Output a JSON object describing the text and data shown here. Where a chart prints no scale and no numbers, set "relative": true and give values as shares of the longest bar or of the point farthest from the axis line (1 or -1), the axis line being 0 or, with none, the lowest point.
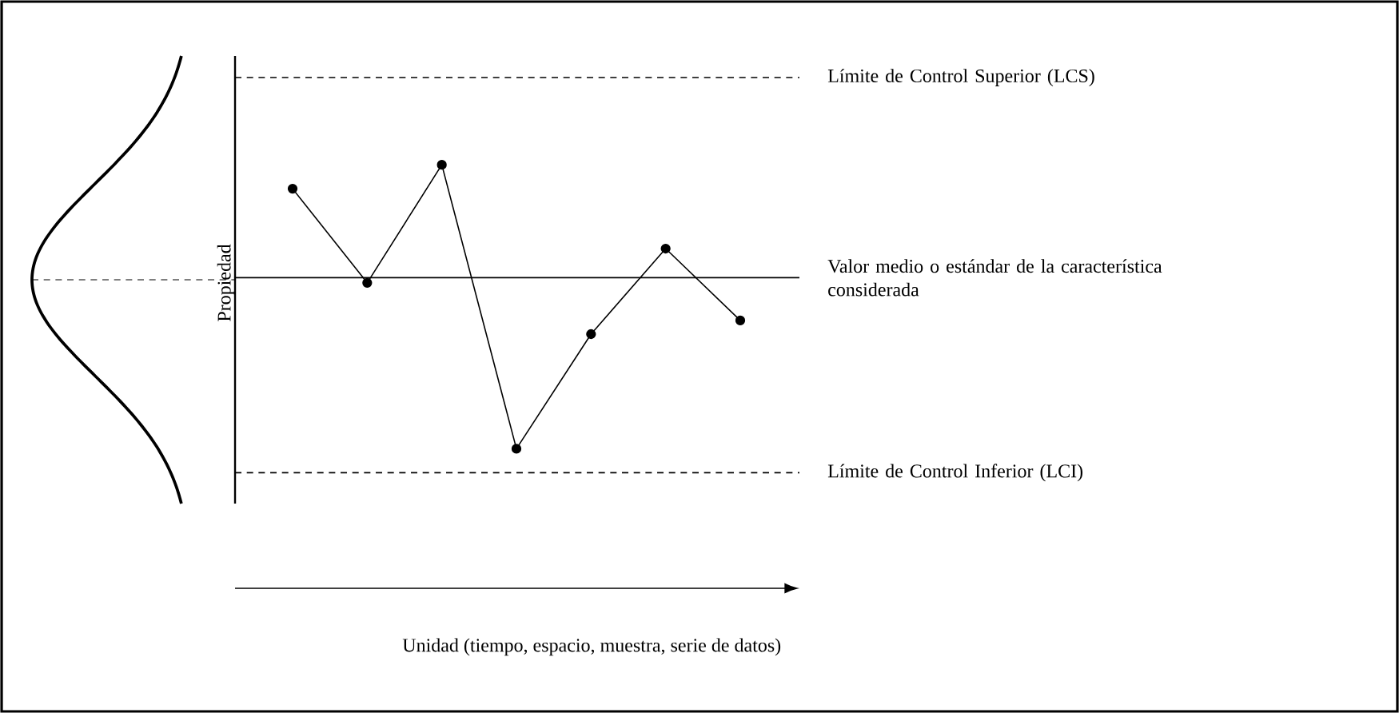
{
  "chart_data": {
    "type": "line",
    "relative": true,
    "ylabel": "Propiedad",
    "annotations": [
      "Unidad (tiempo, espacio, muestra, serie de datos)"
    ],
    "categories": [
      null,
      null,
      null,
      null,
      null,
      null,
      null
    ],
    "marker": "circle",
    "line_style": "solid",
    "series": [
      {
        "color": "#000000",
        "values": [
          0.52,
          -0.03,
          0.66,
          -1,
          -0.33,
          0.17,
          -0.25
        ]
      }
    ],
    "ref_lines": [
      {
        "axis": "y",
        "value": 1.17,
        "label": "Límite de Control Superior (LCS)",
        "line_style": "dashed"
      },
      {
        "axis": "y",
        "value": 0,
        "label": "Valor medio o estándar de la característica considerada",
        "line_style": "solid"
      },
      {
        "axis": "y",
        "value": -1.14,
        "label": "Límite de Control Inferior (LCI)",
        "line_style": "dashed"
      }
    ]
  }
}
